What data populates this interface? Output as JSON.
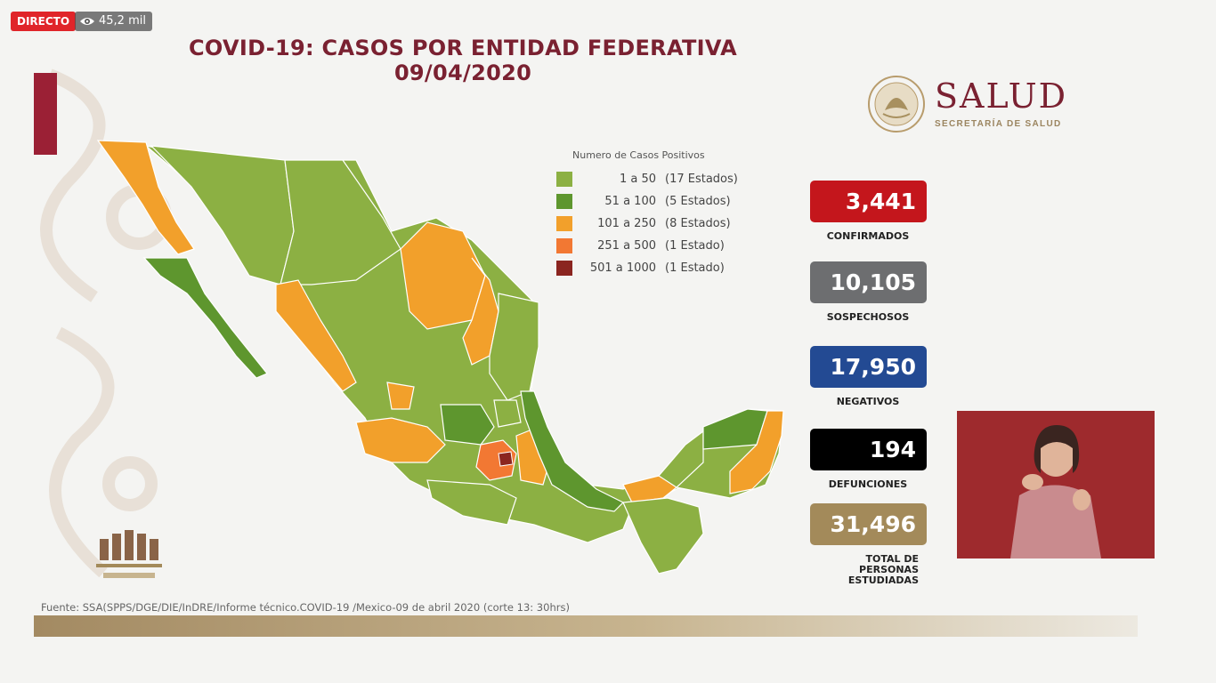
{
  "live": {
    "label": "DIRECTO",
    "views": "45,2 mil"
  },
  "title": {
    "line1": "COVID-19: CASOS POR ENTIDAD FEDERATIVA",
    "line2": "09/04/2020"
  },
  "logo": {
    "word": "SALUD",
    "sub": "SECRETARÍA DE SALUD"
  },
  "legend": {
    "title": "Numero de Casos Positivos",
    "items": [
      {
        "range": "1 a    50",
        "count": "(17 Estados)",
        "color": "#8cb043"
      },
      {
        "range": "51 a  100",
        "count": "(5 Estados)",
        "color": "#5e962e"
      },
      {
        "range": "101 a  250",
        "count": "(8 Estados)",
        "color": "#f2a02b"
      },
      {
        "range": "251 a  500",
        "count": "(1 Estado)",
        "color": "#f27833"
      },
      {
        "range": "501 a 1000",
        "count": "(1 Estado)",
        "color": "#8b2520"
      }
    ]
  },
  "stats": [
    {
      "value": "3,441",
      "label": "CONFIRMADOS",
      "color": "#c4161c"
    },
    {
      "value": "10,105",
      "label": "SOSPECHOSOS",
      "color": "#6d6e70"
    },
    {
      "value": "17,950",
      "label": "NEGATIVOS",
      "color": "#234a93"
    },
    {
      "value": "194",
      "label": "DEFUNCIONES",
      "color": "#000000"
    },
    {
      "value": "31,496",
      "label": "TOTAL DE PERSONAS ESTUDIADAS",
      "color": "#a38a5a"
    }
  ],
  "source": "Fuente: SSA(SPPS/DGE/DIE/InDRE/Informe técnico.COVID-19 /Mexico-09 de abril 2020 (corte 13: 30hrs)",
  "icons": {
    "views": "eye-icon",
    "seal": "mexico-seal-icon",
    "gob": "gobierno-mexico-logo"
  }
}
